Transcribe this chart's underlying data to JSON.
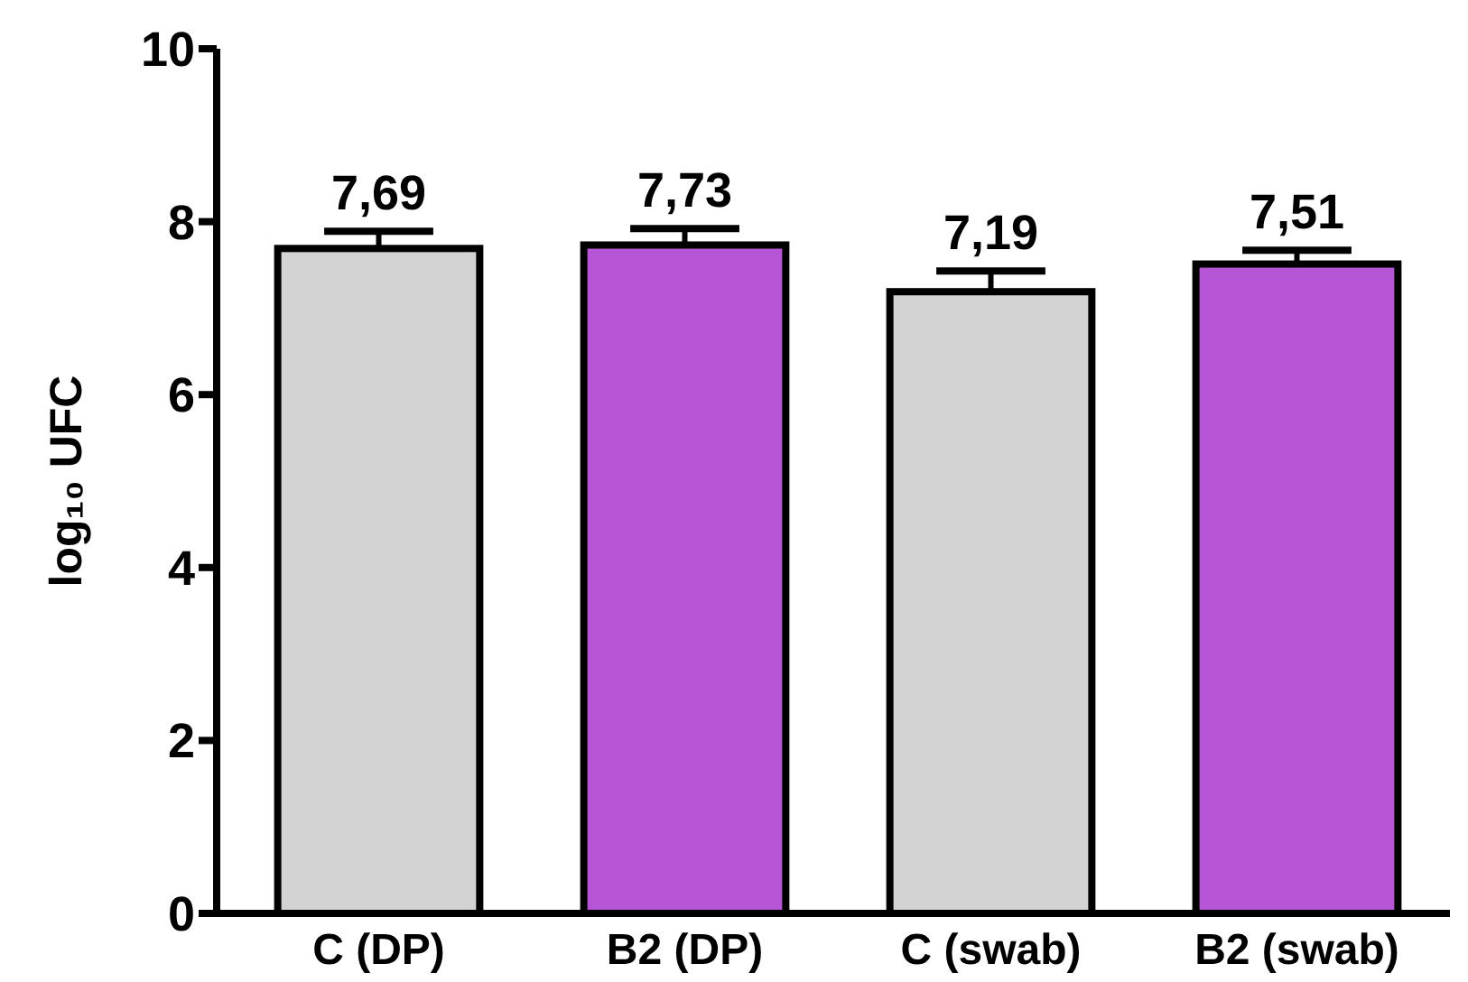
{
  "chart_data": {
    "type": "bar",
    "ylabel": "log₁₀ UFC",
    "categories": [
      "C (DP)",
      "B2 (DP)",
      "C (swab)",
      "B2 (swab)"
    ],
    "values": [
      7.69,
      7.73,
      7.19,
      7.51
    ],
    "colors": [
      "#d3d3d3",
      "#b656d6",
      "#d3d3d3",
      "#b656d6"
    ],
    "errors": [
      0.2,
      0.19,
      0.24,
      0.16
    ],
    "value_labels": [
      "7,69",
      "7,73",
      "7,19",
      "7,51"
    ],
    "ylim": [
      0,
      10
    ],
    "yticks": [
      0,
      2,
      4,
      6,
      8,
      10
    ],
    "grid": false
  }
}
